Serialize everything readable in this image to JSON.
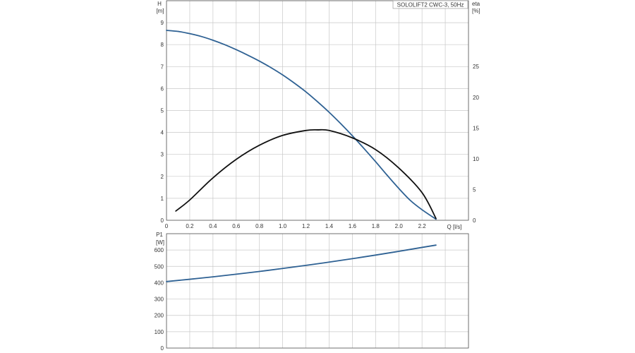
{
  "chart_data": [
    {
      "type": "line",
      "title": "SOLOLIFT2 CWC-3, 50Hz",
      "xlabel": "Q [l/s]",
      "xlim": [
        0,
        2.6
      ],
      "x_ticks": [
        "0",
        "0.2",
        "0.4",
        "0.6",
        "0.8",
        "1.0",
        "1.2",
        "1.4",
        "1.6",
        "1.8",
        "2.0",
        "2.2"
      ],
      "ylabel": "H",
      "ylabel_unit": "[m]",
      "ylim": [
        0,
        10
      ],
      "y_ticks": [
        "0",
        "1",
        "2",
        "3",
        "4",
        "5",
        "6",
        "7",
        "8",
        "9"
      ],
      "y2label": "eta",
      "y2label_unit": "[%]",
      "y2lim": [
        0,
        35.7
      ],
      "y2_ticks": [
        "0",
        "5",
        "10",
        "15",
        "20",
        "25"
      ],
      "grid": true,
      "series": [
        {
          "axis": "left",
          "color": "#2e6193",
          "x": [
            0.0,
            0.1,
            0.2,
            0.3,
            0.4,
            0.5,
            0.6,
            0.7,
            0.8,
            0.9,
            1.0,
            1.1,
            1.2,
            1.3,
            1.4,
            1.5,
            1.6,
            1.7,
            1.8,
            1.9,
            2.0,
            2.1,
            2.2,
            2.32
          ],
          "values": [
            8.65,
            8.6,
            8.5,
            8.37,
            8.2,
            8.0,
            7.77,
            7.52,
            7.25,
            6.95,
            6.62,
            6.25,
            5.85,
            5.4,
            4.92,
            4.4,
            3.85,
            3.27,
            2.67,
            2.05,
            1.45,
            0.9,
            0.48,
            0.05
          ]
        },
        {
          "axis": "right",
          "color": "#111111",
          "x": [
            0.08,
            0.2,
            0.4,
            0.6,
            0.8,
            1.0,
            1.2,
            1.3,
            1.4,
            1.6,
            1.8,
            2.0,
            2.2,
            2.32
          ],
          "values": [
            1.5,
            3.3,
            6.9,
            9.9,
            12.2,
            13.8,
            14.6,
            14.7,
            14.6,
            13.4,
            11.5,
            8.5,
            4.5,
            0.3
          ]
        }
      ]
    },
    {
      "type": "line",
      "ylabel": "P1",
      "ylabel_unit": "[W]",
      "xlim": [
        0,
        2.6
      ],
      "ylim": [
        0,
        700
      ],
      "y_ticks": [
        "0",
        "100",
        "200",
        "300",
        "400",
        "500",
        "600"
      ],
      "grid": true,
      "series": [
        {
          "axis": "left",
          "color": "#2e6193",
          "x": [
            0.0,
            0.2,
            0.4,
            0.6,
            0.8,
            1.0,
            1.2,
            1.4,
            1.6,
            1.8,
            2.0,
            2.2,
            2.32
          ],
          "values": [
            407,
            421,
            436,
            452,
            469,
            487,
            506,
            526,
            547,
            569,
            592,
            616,
            630
          ]
        }
      ]
    }
  ]
}
